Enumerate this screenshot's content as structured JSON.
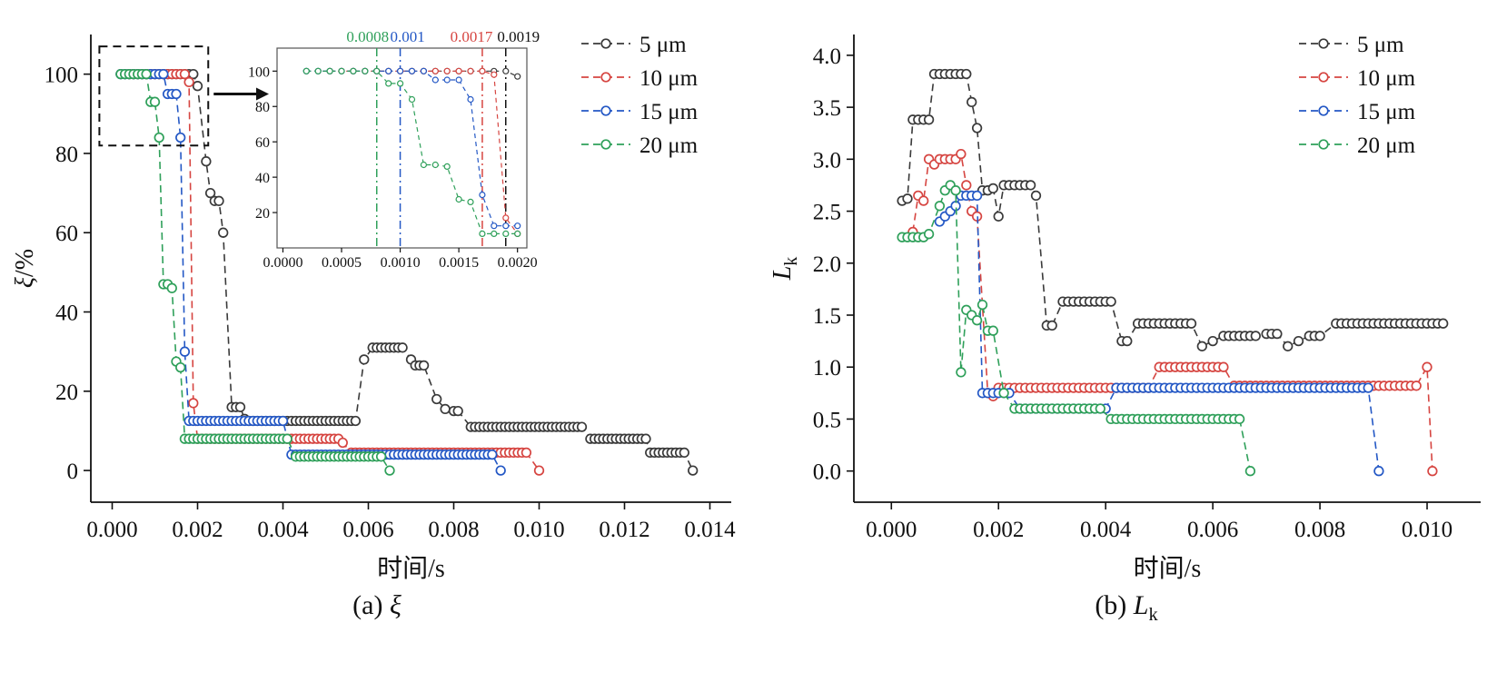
{
  "figure": {
    "background": "#ffffff"
  },
  "colors": {
    "s5": "#3a3a3a",
    "s10": "#d64541",
    "s15": "#2458c5",
    "s20": "#2fa05a",
    "axis": "#111111"
  },
  "legend_labels": [
    "5 μm",
    "10 μm",
    "15 μm",
    "20 μm"
  ],
  "points_encoding": "[t,v] single point | [t0,t1,v] run of points stepped by run_dt",
  "chart_data": [
    {
      "id": "panel-a",
      "type": "scatter-line",
      "xlabel": "时间/s",
      "ylabel_parts": [
        {
          "t": "ξ",
          "i": true
        },
        {
          "t": "/%"
        }
      ],
      "caption_parts": [
        {
          "t": "(a) "
        },
        {
          "t": "ξ",
          "i": true
        }
      ],
      "xlim": [
        -0.0005,
        0.0145
      ],
      "ylim": [
        -8,
        110
      ],
      "xticks": [
        0,
        0.002,
        0.004,
        0.006,
        0.008,
        0.01,
        0.012,
        0.014
      ],
      "xtick_labels": [
        "0.000",
        "0.002",
        "0.004",
        "0.006",
        "0.008",
        "0.010",
        "0.012",
        "0.014"
      ],
      "yticks": [
        0,
        20,
        40,
        60,
        80,
        100
      ],
      "ytick_labels": [
        "0",
        "20",
        "40",
        "60",
        "80",
        "100"
      ],
      "legend_position": "top-right",
      "run_dt": 0.0001,
      "series": [
        {
          "name": "5 μm",
          "color_key": "s5",
          "points": [
            [
              0.0002,
              0.0019,
              100
            ],
            [
              0.002,
              97
            ],
            [
              0.0022,
              78
            ],
            [
              0.0023,
              70
            ],
            [
              0.0024,
              0.0025,
              68
            ],
            [
              0.0026,
              60
            ],
            [
              0.0028,
              0.003,
              16
            ],
            [
              0.0031,
              13
            ],
            [
              0.0032,
              0.0057,
              12.5
            ],
            [
              0.0059,
              28
            ],
            [
              0.0061,
              0.0068,
              31
            ],
            [
              0.007,
              28
            ],
            [
              0.0071,
              0.0073,
              26.5
            ],
            [
              0.0076,
              18
            ],
            [
              0.0078,
              15.5
            ],
            [
              0.008,
              0.0081,
              15
            ],
            [
              0.0084,
              0.011,
              11
            ],
            [
              0.0112,
              0.0125,
              8
            ],
            [
              0.0126,
              0.0134,
              4.5
            ],
            [
              0.0136,
              0
            ]
          ]
        },
        {
          "name": "10 μm",
          "color_key": "s10",
          "points": [
            [
              0.0004,
              0.0017,
              100
            ],
            [
              0.0018,
              98
            ],
            [
              0.0019,
              17
            ],
            [
              0.002,
              0.0053,
              8
            ],
            [
              0.0054,
              7
            ],
            [
              0.0056,
              0.0097,
              4.5
            ],
            [
              0.01,
              0
            ]
          ]
        },
        {
          "name": "15 μm",
          "color_key": "s15",
          "points": [
            [
              0.0002,
              0.0012,
              100
            ],
            [
              0.0013,
              0.0015,
              95
            ],
            [
              0.0016,
              84
            ],
            [
              0.0017,
              30
            ],
            [
              0.0018,
              0.004,
              12.5
            ],
            [
              0.0042,
              0.0089,
              4
            ],
            [
              0.0091,
              0
            ]
          ]
        },
        {
          "name": "20 μm",
          "color_key": "s20",
          "points": [
            [
              0.0002,
              0.0008,
              100
            ],
            [
              0.0009,
              0.001,
              93
            ],
            [
              0.0011,
              84
            ],
            [
              0.0012,
              0.0013,
              47
            ],
            [
              0.0014,
              46
            ],
            [
              0.0015,
              27.5
            ],
            [
              0.0016,
              26
            ],
            [
              0.0017,
              0.0041,
              8
            ],
            [
              0.0043,
              0.0063,
              3.5
            ],
            [
              0.0065,
              0
            ]
          ]
        }
      ],
      "annotations": {
        "dashed_box": {
          "x0": -0.0003,
          "y0": 82,
          "x1": 0.00225,
          "y1": 107
        },
        "arrow_y": 95,
        "inset": {
          "xlim": [
            -5e-05,
            0.00208
          ],
          "ylim": [
            0,
            113
          ],
          "xticks": [
            0,
            0.0005,
            0.001,
            0.0015,
            0.002
          ],
          "xtick_labels": [
            "0.0000",
            "0.0005",
            "0.0010",
            "0.0015",
            "0.0020"
          ],
          "yticks": [
            20,
            40,
            60,
            80,
            100
          ],
          "ytick_labels": [
            "20",
            "40",
            "60",
            "80",
            "100"
          ],
          "vlines": [
            {
              "x": 0.0008,
              "label": "0.0008",
              "color_key": "s20",
              "dx": -10
            },
            {
              "x": 0.001,
              "label": "0.001",
              "color_key": "s15",
              "dx": 8
            },
            {
              "x": 0.0017,
              "label": "0.0017",
              "color_key": "s10",
              "dx": -12
            },
            {
              "x": 0.0019,
              "label": "0.0019",
              "color_key": "axis",
              "dx": 14
            }
          ]
        }
      }
    },
    {
      "id": "panel-b",
      "type": "scatter-line",
      "xlabel": "时间/s",
      "ylabel_parts": [
        {
          "t": "L",
          "i": true
        },
        {
          "t": "k",
          "sub": true
        }
      ],
      "caption_parts": [
        {
          "t": "(b) "
        },
        {
          "t": "L",
          "i": true
        },
        {
          "t": "k",
          "sub": true
        }
      ],
      "xlim": [
        -0.0007,
        0.011
      ],
      "ylim": [
        -0.3,
        4.2
      ],
      "xticks": [
        0,
        0.002,
        0.004,
        0.006,
        0.008,
        0.01
      ],
      "xtick_labels": [
        "0.000",
        "0.002",
        "0.004",
        "0.006",
        "0.008",
        "0.010"
      ],
      "yticks": [
        0,
        0.5,
        1.0,
        1.5,
        2.0,
        2.5,
        3.0,
        3.5,
        4.0
      ],
      "ytick_labels": [
        "0.0",
        "0.5",
        "1.0",
        "1.5",
        "2.0",
        "2.5",
        "3.0",
        "3.5",
        "4.0"
      ],
      "legend_position": "top-right",
      "run_dt": 0.0001,
      "series": [
        {
          "name": "5 μm",
          "color_key": "s5",
          "points": [
            [
              0.0002,
              2.6
            ],
            [
              0.0003,
              2.62
            ],
            [
              0.0004,
              0.0007,
              3.38
            ],
            [
              0.0008,
              0.0014,
              3.82
            ],
            [
              0.0015,
              3.55
            ],
            [
              0.0016,
              3.3
            ],
            [
              0.0017,
              0.0018,
              2.7
            ],
            [
              0.0019,
              2.72
            ],
            [
              0.002,
              2.45
            ],
            [
              0.0021,
              0.0026,
              2.75
            ],
            [
              0.0027,
              2.65
            ],
            [
              0.0029,
              0.003,
              1.4
            ],
            [
              0.0032,
              0.0041,
              1.63
            ],
            [
              0.0043,
              0.0044,
              1.25
            ],
            [
              0.0046,
              0.0056,
              1.42
            ],
            [
              0.0058,
              1.2
            ],
            [
              0.006,
              1.25
            ],
            [
              0.0062,
              0.0068,
              1.3
            ],
            [
              0.007,
              0.0072,
              1.32
            ],
            [
              0.0074,
              1.2
            ],
            [
              0.0076,
              1.25
            ],
            [
              0.0078,
              0.008,
              1.3
            ],
            [
              0.0083,
              0.0103,
              1.42
            ]
          ]
        },
        {
          "name": "10 μm",
          "color_key": "s10",
          "points": [
            [
              0.0004,
              2.3
            ],
            [
              0.0005,
              2.65
            ],
            [
              0.0006,
              2.6
            ],
            [
              0.0007,
              3.0
            ],
            [
              0.0008,
              2.95
            ],
            [
              0.0009,
              0.0012,
              3.0
            ],
            [
              0.0013,
              3.05
            ],
            [
              0.0014,
              2.75
            ],
            [
              0.0015,
              2.5
            ],
            [
              0.0016,
              2.45
            ],
            [
              0.0018,
              0.75
            ],
            [
              0.0019,
              0.72
            ],
            [
              0.002,
              0.0048,
              0.8
            ],
            [
              0.005,
              0.0062,
              1.0
            ],
            [
              0.0064,
              0.0098,
              0.82
            ],
            [
              0.01,
              1.0
            ],
            [
              0.0101,
              0
            ]
          ]
        },
        {
          "name": "15 μm",
          "color_key": "s15",
          "points": [
            [
              0.0009,
              2.4
            ],
            [
              0.001,
              2.45
            ],
            [
              0.0011,
              2.5
            ],
            [
              0.0012,
              2.55
            ],
            [
              0.0013,
              0.0016,
              2.65
            ],
            [
              0.0017,
              0.0022,
              0.75
            ],
            [
              0.0024,
              0.004,
              0.6
            ],
            [
              0.0042,
              0.0089,
              0.8
            ],
            [
              0.0091,
              0
            ]
          ]
        },
        {
          "name": "20 μm",
          "color_key": "s20",
          "points": [
            [
              0.0002,
              0.0006,
              2.25
            ],
            [
              0.0007,
              2.28
            ],
            [
              0.0009,
              2.55
            ],
            [
              0.001,
              2.7
            ],
            [
              0.0011,
              2.75
            ],
            [
              0.0012,
              2.7
            ],
            [
              0.0013,
              0.95
            ],
            [
              0.0014,
              1.55
            ],
            [
              0.0015,
              1.5
            ],
            [
              0.0016,
              1.45
            ],
            [
              0.0017,
              1.6
            ],
            [
              0.0018,
              0.0019,
              1.35
            ],
            [
              0.0021,
              0.75
            ],
            [
              0.0023,
              0.0039,
              0.6
            ],
            [
              0.0041,
              0.0065,
              0.5
            ],
            [
              0.0067,
              0
            ]
          ]
        }
      ]
    }
  ]
}
